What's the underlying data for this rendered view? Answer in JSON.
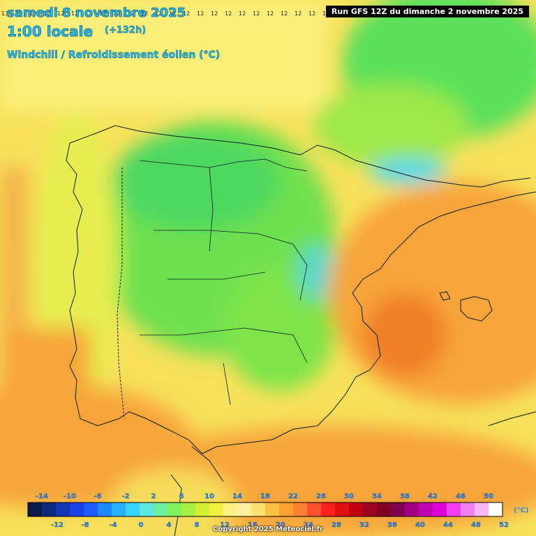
{
  "header": {
    "date": "samedi 8 novembre 2025",
    "time": "1:00 locale",
    "offset": "(+132h)",
    "parameter": "Windchill / Refroidissement éolien (°C)"
  },
  "run_info": "Run GFS 12Z du dimanche 2 novembre 2025",
  "copyright": "Copyright 2025 Meteociel.fr",
  "legend": {
    "unit": "(°C)",
    "top_labels": [
      "-14",
      "-10",
      "-6",
      "-2",
      "2",
      "6",
      "10",
      "14",
      "18",
      "22",
      "26",
      "30",
      "34",
      "38",
      "42",
      "46",
      "50"
    ],
    "bottom_labels": [
      "-12",
      "-8",
      "-4",
      "0",
      "4",
      "8",
      "12",
      "16",
      "20",
      "24",
      "28",
      "32",
      "36",
      "40",
      "44",
      "48",
      "52"
    ],
    "colors": [
      "#0a1a4a",
      "#0d2a7a",
      "#1436b4",
      "#1a40e8",
      "#1e5cff",
      "#1f88ff",
      "#28b0ff",
      "#36d4ff",
      "#5ae8e0",
      "#6cf0a0",
      "#80f060",
      "#a8f040",
      "#d0f030",
      "#f0f040",
      "#fff080",
      "#fff0a0",
      "#ffe070",
      "#ffc040",
      "#ffa030",
      "#ff8030",
      "#ff5030",
      "#ff2020",
      "#e01010",
      "#c00010",
      "#a00020",
      "#800020",
      "#800050",
      "#a00080",
      "#c000b0",
      "#e000d8",
      "#f040f0",
      "#f080f0",
      "#f8b8f8",
      "#ffffff"
    ]
  },
  "grid": {
    "top_left_values": [
      "13",
      "13",
      "12",
      "12",
      "12",
      "12",
      "12",
      "12",
      "12",
      "12",
      "12",
      "12",
      "12",
      "12",
      "12",
      "12",
      "12",
      "12",
      "12",
      "12",
      "12",
      "12",
      "12",
      "12",
      "12"
    ]
  }
}
